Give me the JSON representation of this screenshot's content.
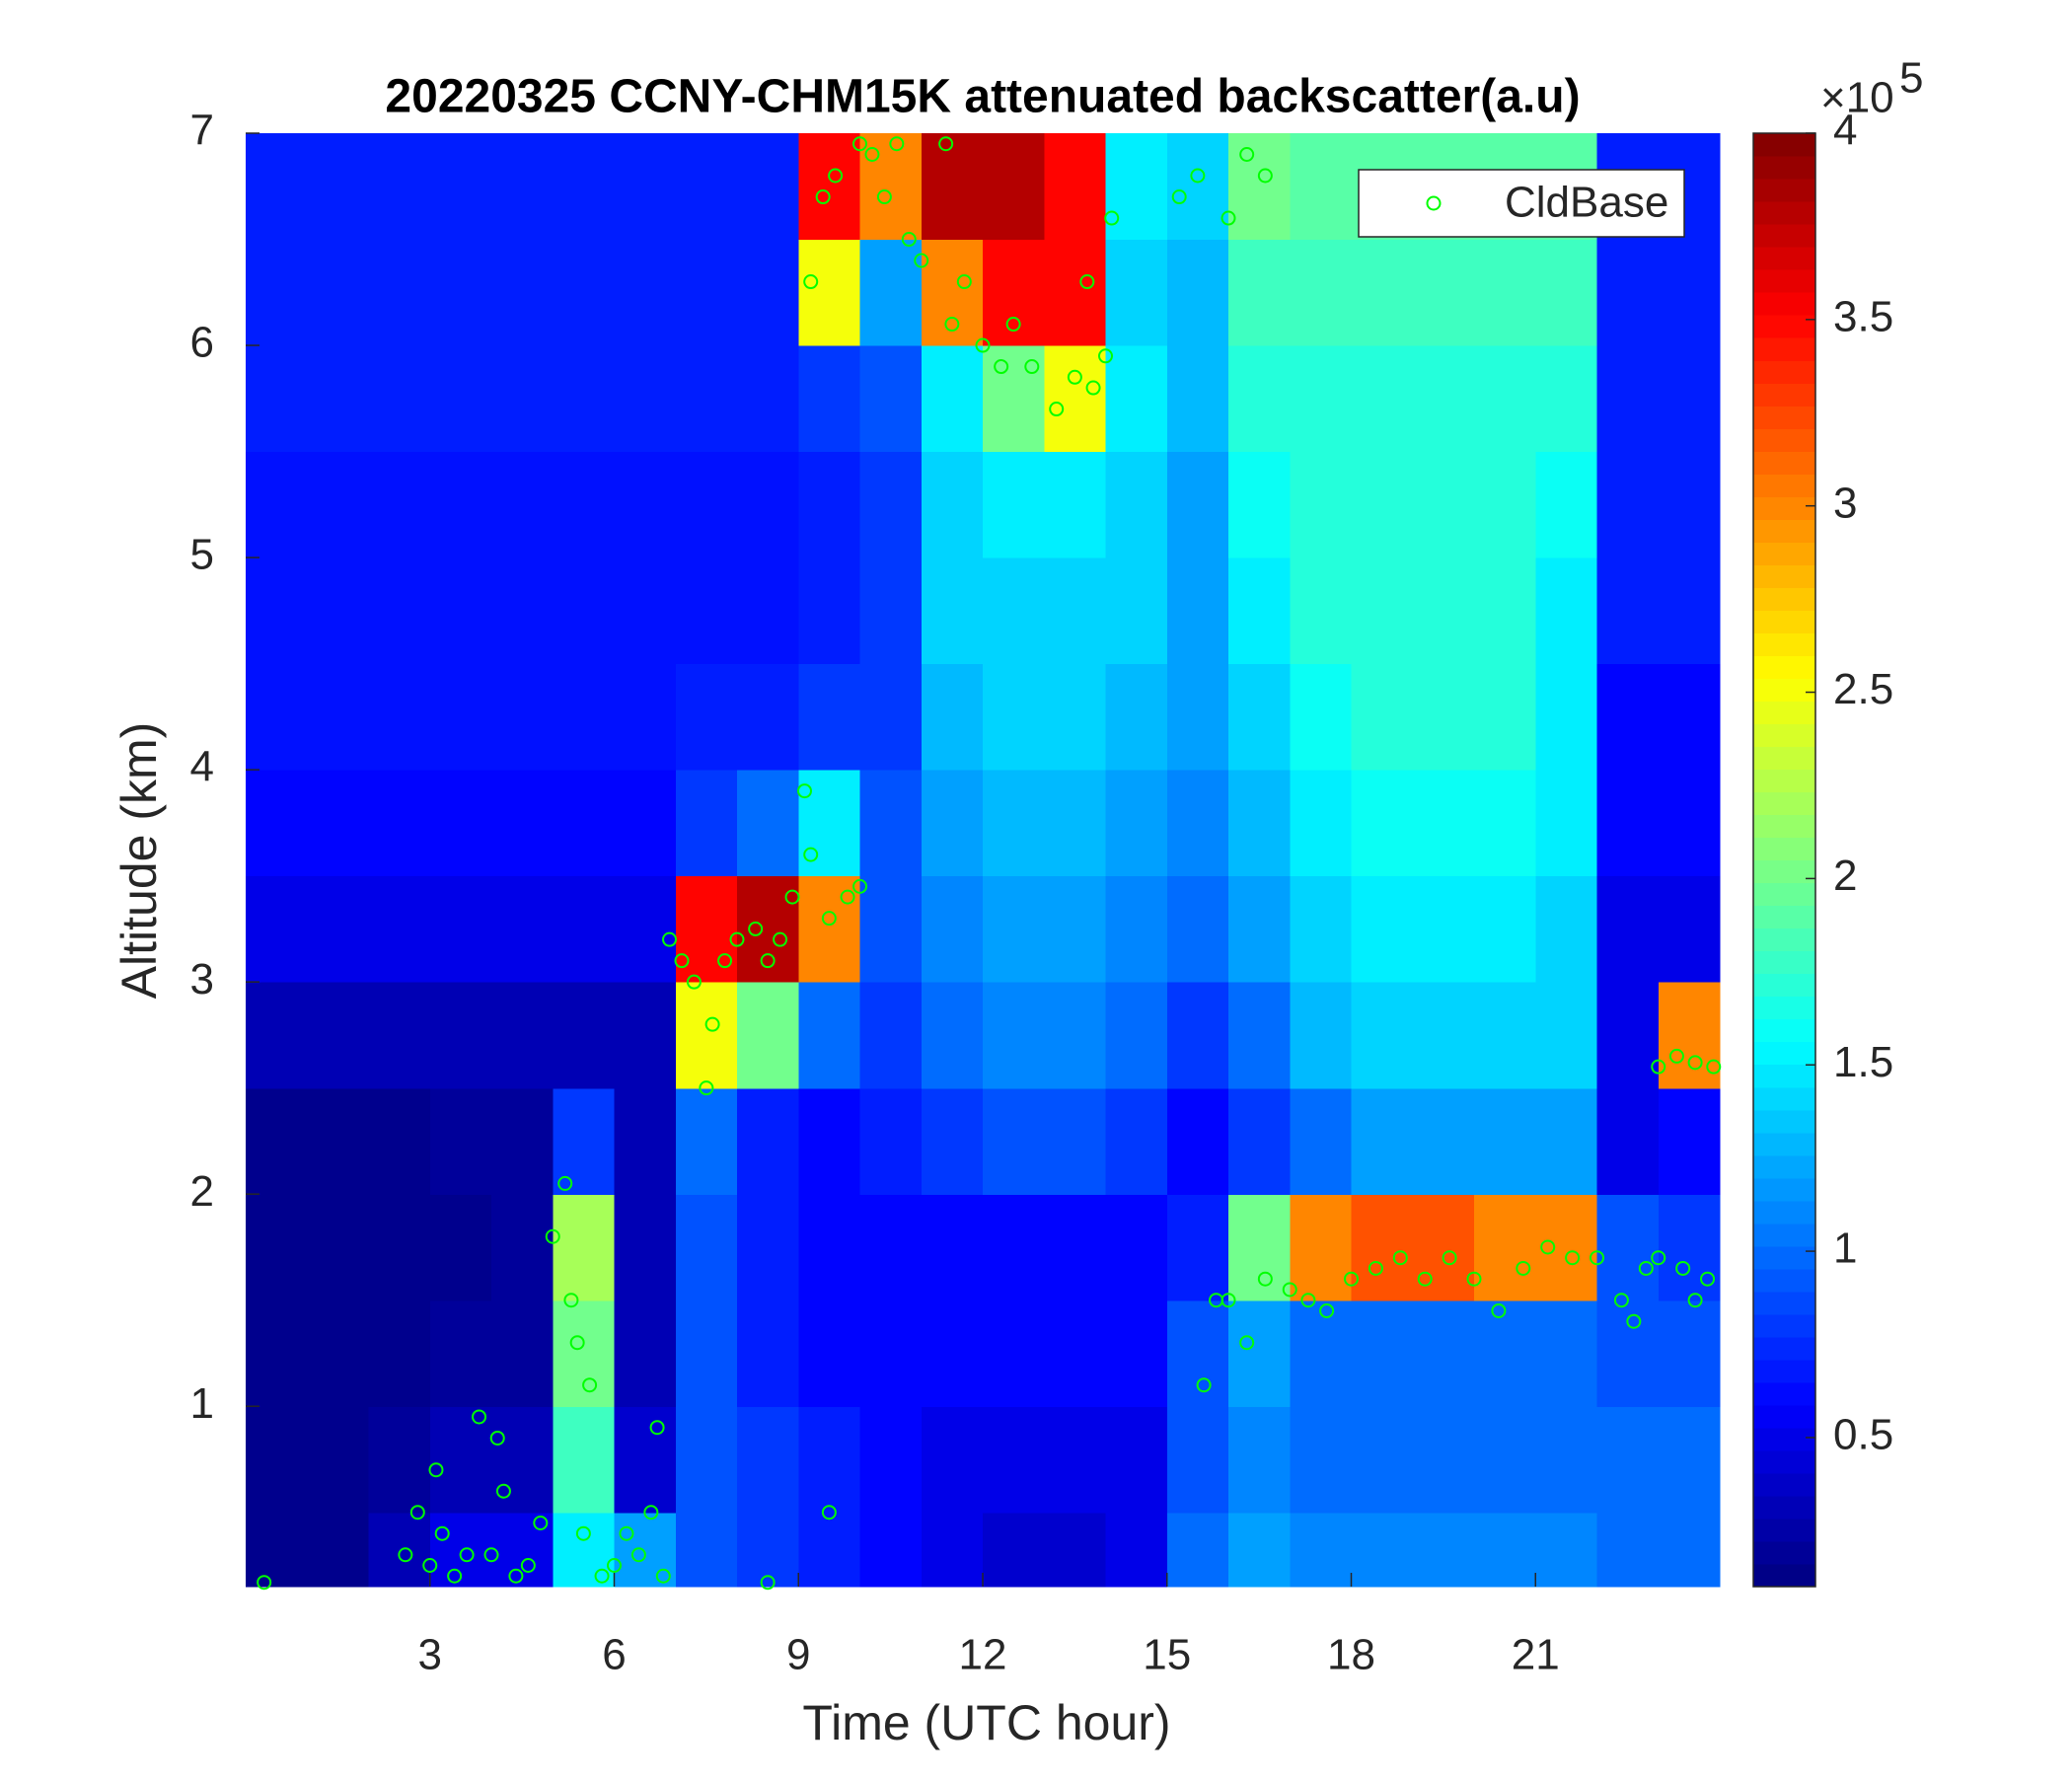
{
  "chart_data": {
    "type": "heatmap",
    "title": "20220325 CCNY-CHM15K attenuated backscatter(a.u)",
    "x_label": "Time (UTC hour)",
    "y_label": "Altitude (km)",
    "xlim": [
      0,
      24
    ],
    "ylim": [
      0.15,
      7
    ],
    "xticks": [
      3,
      6,
      9,
      12,
      15,
      18,
      21
    ],
    "yticks": [
      1,
      2,
      3,
      4,
      5,
      6,
      7
    ],
    "x_edges": [
      0,
      1,
      2,
      3,
      4,
      5,
      6,
      7,
      8,
      9,
      10,
      11,
      12,
      13,
      14,
      15,
      16,
      17,
      18,
      19,
      20,
      21,
      22,
      23,
      24
    ],
    "y_edges": [
      0.15,
      0.5,
      1,
      1.5,
      2,
      2.5,
      3,
      3.5,
      4,
      4.5,
      5,
      5.5,
      6,
      6.5,
      7
    ],
    "z": [
      [
        0.15,
        0.15,
        0.3,
        0.5,
        0.5,
        1.5,
        1.2,
        0.9,
        0.8,
        0.7,
        0.6,
        0.5,
        0.4,
        0.4,
        0.5,
        1.0,
        1.2,
        1.1,
        1.1,
        1.1,
        1.1,
        1.1,
        1.0,
        1.0
      ],
      [
        0.15,
        0.15,
        0.2,
        0.3,
        0.3,
        1.8,
        0.4,
        0.9,
        0.8,
        0.7,
        0.6,
        0.5,
        0.5,
        0.5,
        0.5,
        0.9,
        1.1,
        1.0,
        1.0,
        1.0,
        1.0,
        1.0,
        1.0,
        1.0
      ],
      [
        0.15,
        0.15,
        0.15,
        0.2,
        0.2,
        2.0,
        0.3,
        0.9,
        0.7,
        0.6,
        0.6,
        0.6,
        0.6,
        0.6,
        0.6,
        0.9,
        1.2,
        1.0,
        1.0,
        1.0,
        1.0,
        1.0,
        0.9,
        0.9
      ],
      [
        0.15,
        0.15,
        0.15,
        0.15,
        0.2,
        2.2,
        0.3,
        0.9,
        0.7,
        0.6,
        0.6,
        0.6,
        0.6,
        0.6,
        0.6,
        0.7,
        2.0,
        3.0,
        3.2,
        3.2,
        3.0,
        3.0,
        0.9,
        0.8
      ],
      [
        0.15,
        0.15,
        0.15,
        0.2,
        0.2,
        0.8,
        0.3,
        1.0,
        0.7,
        0.6,
        0.7,
        0.8,
        0.9,
        0.9,
        0.8,
        0.6,
        0.8,
        1.0,
        1.2,
        1.2,
        1.2,
        1.2,
        0.5,
        0.6
      ],
      [
        0.3,
        0.3,
        0.3,
        0.3,
        0.3,
        0.3,
        0.3,
        2.5,
        2.0,
        1.0,
        0.8,
        1.0,
        1.1,
        1.1,
        1.0,
        0.8,
        1.0,
        1.3,
        1.4,
        1.4,
        1.4,
        1.4,
        0.5,
        3.0
      ],
      [
        0.5,
        0.5,
        0.5,
        0.5,
        0.5,
        0.5,
        0.5,
        3.5,
        3.8,
        3.0,
        0.9,
        1.1,
        1.2,
        1.2,
        1.1,
        1.0,
        1.2,
        1.4,
        1.5,
        1.5,
        1.5,
        1.4,
        0.5,
        0.5
      ],
      [
        0.6,
        0.6,
        0.6,
        0.6,
        0.6,
        0.6,
        0.6,
        0.8,
        1.0,
        1.5,
        0.9,
        1.2,
        1.3,
        1.3,
        1.2,
        1.1,
        1.3,
        1.5,
        1.6,
        1.6,
        1.6,
        1.5,
        0.6,
        0.6
      ],
      [
        0.65,
        0.65,
        0.65,
        0.65,
        0.65,
        0.65,
        0.65,
        0.7,
        0.7,
        0.8,
        0.8,
        1.3,
        1.4,
        1.4,
        1.3,
        1.2,
        1.4,
        1.6,
        1.7,
        1.7,
        1.7,
        1.5,
        0.6,
        0.6
      ],
      [
        0.65,
        0.65,
        0.65,
        0.65,
        0.65,
        0.65,
        0.65,
        0.65,
        0.65,
        0.7,
        0.8,
        1.4,
        1.4,
        1.4,
        1.4,
        1.2,
        1.5,
        1.7,
        1.7,
        1.7,
        1.7,
        1.5,
        0.7,
        0.7
      ],
      [
        0.65,
        0.65,
        0.65,
        0.65,
        0.65,
        0.65,
        0.65,
        0.65,
        0.65,
        0.7,
        0.8,
        1.4,
        1.5,
        1.5,
        1.4,
        1.2,
        1.6,
        1.7,
        1.7,
        1.7,
        1.7,
        1.6,
        0.7,
        0.7
      ],
      [
        0.7,
        0.7,
        0.7,
        0.7,
        0.7,
        0.7,
        0.7,
        0.7,
        0.7,
        0.8,
        0.9,
        1.5,
        2.0,
        2.5,
        1.5,
        1.3,
        1.7,
        1.7,
        1.7,
        1.7,
        1.7,
        1.7,
        0.7,
        0.7
      ],
      [
        0.7,
        0.7,
        0.7,
        0.7,
        0.7,
        0.7,
        0.7,
        0.7,
        0.7,
        2.5,
        1.2,
        3.0,
        3.5,
        3.5,
        1.4,
        1.3,
        1.8,
        1.8,
        1.8,
        1.8,
        1.8,
        1.8,
        0.7,
        0.7
      ],
      [
        0.7,
        0.7,
        0.7,
        0.7,
        0.7,
        0.7,
        0.7,
        0.7,
        0.7,
        3.5,
        3.0,
        3.8,
        3.8,
        3.5,
        1.5,
        1.4,
        2.0,
        1.9,
        1.9,
        1.9,
        1.9,
        1.9,
        0.7,
        0.7
      ]
    ],
    "colormap": "jet",
    "clim": [
      0.1,
      4
    ],
    "cticks": [
      0.5,
      1,
      1.5,
      2,
      2.5,
      3,
      3.5,
      4
    ],
    "colorbar_multiplier": {
      "base": "×10",
      "power": "5"
    },
    "legend": "upper right",
    "series": [
      {
        "name": "CldBase",
        "type": "scatter",
        "color": "#00ff00",
        "x": [
          0.3,
          2.6,
          2.8,
          3.0,
          3.1,
          3.2,
          3.4,
          3.6,
          3.8,
          4.0,
          4.1,
          4.2,
          4.4,
          4.6,
          4.8,
          5.0,
          5.2,
          5.3,
          5.4,
          5.5,
          5.6,
          5.8,
          6.0,
          6.2,
          6.4,
          6.6,
          6.7,
          6.8,
          6.9,
          7.1,
          7.3,
          7.5,
          7.6,
          7.8,
          8.0,
          8.3,
          8.5,
          8.7,
          8.9,
          9.1,
          9.2,
          9.5,
          9.8,
          10.0,
          8.5,
          9.5,
          9.2,
          9.4,
          9.6,
          10.0,
          10.2,
          10.4,
          10.8,
          11.0,
          11.5,
          11.7,
          12.0,
          12.3,
          12.5,
          12.8,
          13.2,
          13.5,
          13.8,
          14.0,
          14.1,
          13.7,
          11.4,
          10.6,
          15.2,
          15.5,
          16.0,
          16.3,
          16.6,
          15.6,
          15.8,
          16.0,
          16.3,
          16.6,
          17.0,
          17.3,
          17.6,
          18.0,
          18.4,
          18.8,
          19.2,
          19.6,
          20.0,
          20.4,
          20.8,
          21.2,
          21.6,
          22.0,
          22.4,
          22.6,
          22.8,
          23.0,
          23.4,
          23.6,
          23.8,
          23.0,
          23.3,
          23.6,
          23.9
        ],
        "y": [
          0.17,
          0.3,
          0.5,
          0.25,
          0.7,
          0.4,
          0.2,
          0.3,
          0.95,
          0.3,
          0.85,
          0.6,
          0.2,
          0.25,
          0.45,
          1.8,
          2.05,
          1.5,
          1.3,
          0.4,
          1.1,
          0.2,
          0.25,
          0.4,
          0.3,
          0.5,
          0.9,
          0.2,
          3.2,
          3.1,
          3.0,
          2.5,
          2.8,
          3.1,
          3.2,
          3.25,
          3.1,
          3.2,
          3.4,
          3.9,
          3.6,
          3.3,
          3.4,
          3.45,
          0.17,
          0.5,
          6.3,
          6.7,
          6.8,
          6.95,
          6.9,
          6.7,
          6.5,
          6.4,
          6.1,
          6.3,
          6.0,
          5.9,
          6.1,
          5.9,
          5.7,
          5.85,
          5.8,
          5.95,
          6.6,
          6.3,
          6.95,
          6.95,
          6.7,
          6.8,
          6.6,
          6.9,
          6.8,
          1.1,
          1.5,
          1.5,
          1.3,
          1.6,
          1.55,
          1.5,
          1.45,
          1.6,
          1.65,
          1.7,
          1.6,
          1.7,
          1.6,
          1.45,
          1.65,
          1.75,
          1.7,
          1.7,
          1.5,
          1.4,
          1.65,
          1.7,
          1.65,
          1.5,
          1.6,
          2.6,
          2.65,
          2.62,
          2.6
        ]
      }
    ]
  }
}
